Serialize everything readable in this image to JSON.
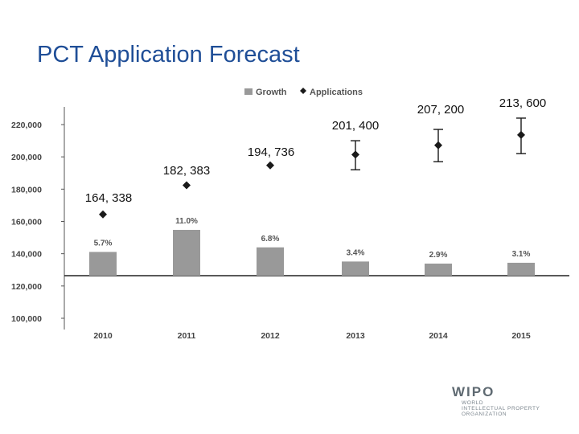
{
  "slide": {
    "title": "PCT Application Forecast"
  },
  "chart_data": {
    "type": "bar",
    "categories": [
      "2010",
      "2011",
      "2012",
      "2013",
      "2014",
      "2015"
    ],
    "ylim": [
      100000,
      220000
    ],
    "y_ticks": [
      "100,000",
      "120,000",
      "140,000",
      "160,000",
      "180,000",
      "200,000",
      "220,000"
    ],
    "legend": {
      "position": "top-center",
      "entries": [
        "Growth",
        "Applications"
      ]
    },
    "series": [
      {
        "name": "Growth",
        "type": "bar",
        "values": [
          5.7,
          11.0,
          6.8,
          3.4,
          2.9,
          3.1
        ],
        "labels": [
          "5.7%",
          "11.0%",
          "6.8%",
          "3.4%",
          "2.9%",
          "3.1%"
        ],
        "color": "#999999"
      },
      {
        "name": "Applications",
        "type": "scatter",
        "values": [
          164338,
          182383,
          194736,
          201400,
          207200,
          213600
        ],
        "labels": [
          "164, 338",
          "182, 383",
          "194, 736",
          "201, 400",
          "207, 200",
          "213, 600"
        ],
        "error_low": [
          null,
          null,
          null,
          192000,
          197000,
          202000
        ],
        "error_high": [
          null,
          null,
          null,
          210000,
          217000,
          224000
        ],
        "color": "#1a1a1a"
      }
    ],
    "grid": false
  },
  "logo": {
    "mark": "WIPO",
    "lines": [
      "WORLD",
      "INTELLECTUAL PROPERTY",
      "ORGANIZATION"
    ]
  }
}
